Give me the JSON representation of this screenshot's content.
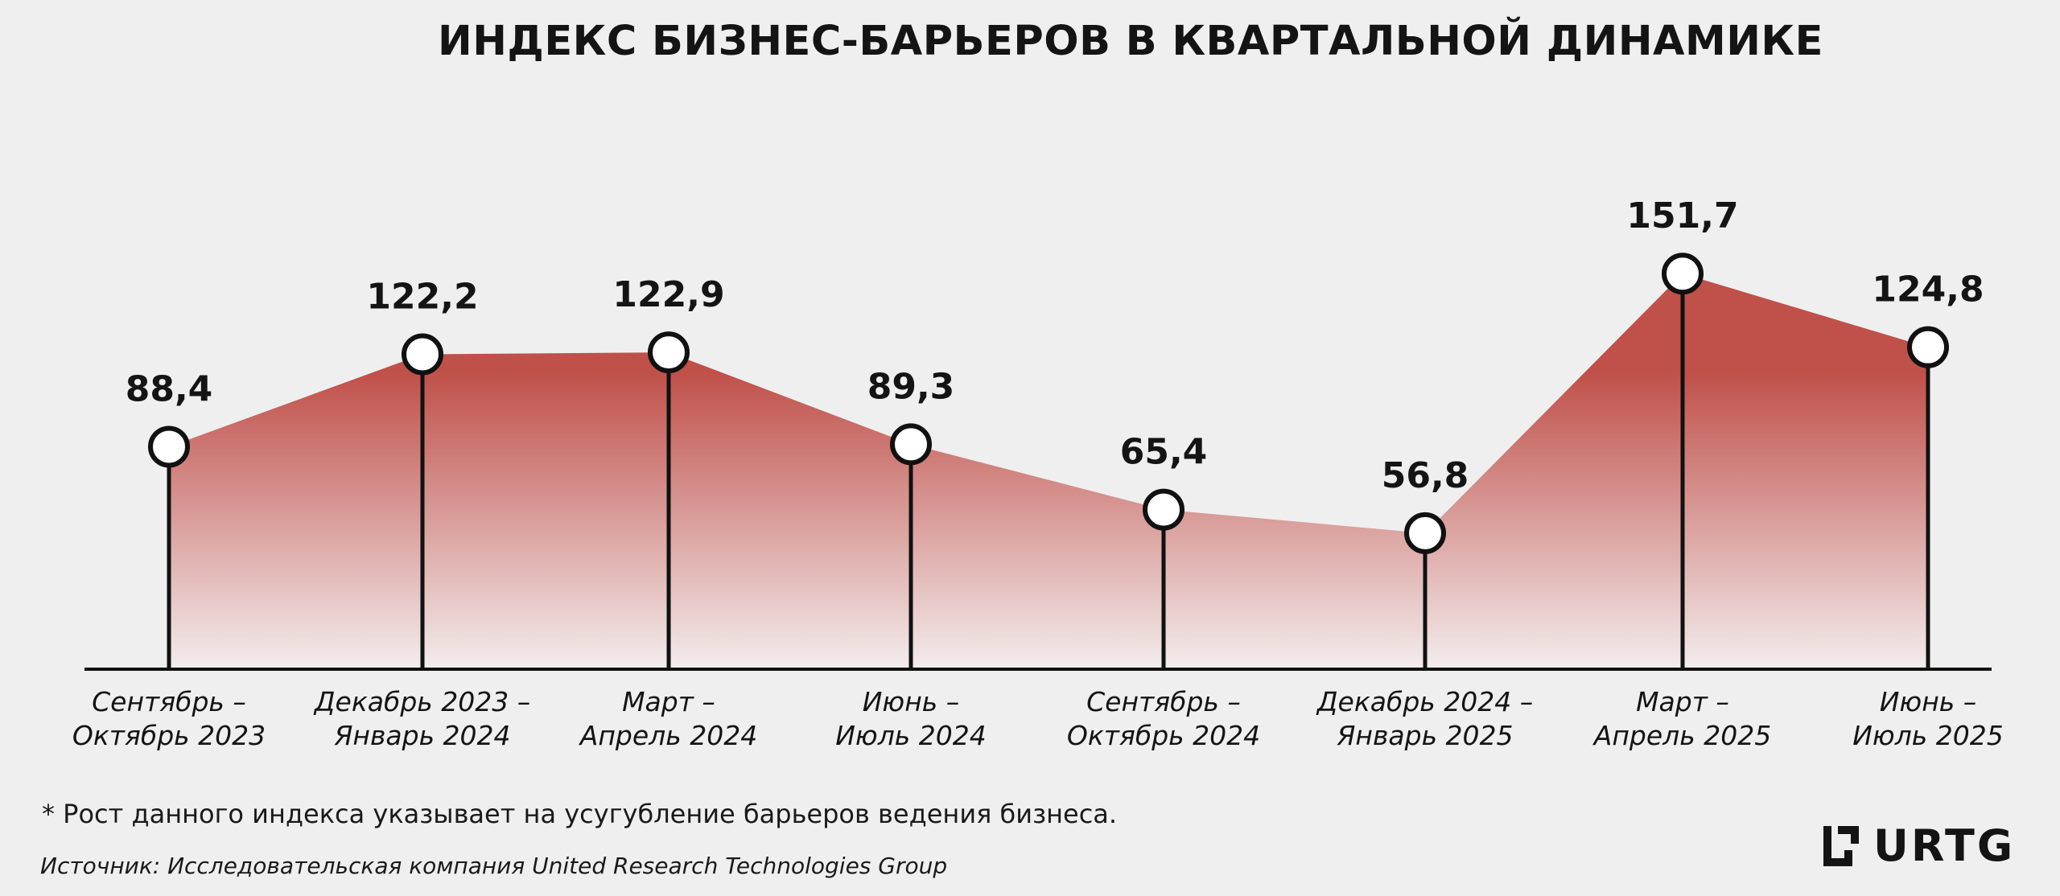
{
  "chart_data": {
    "type": "area",
    "title": "ИНДЕКС БИЗНЕС-БАРЬЕРОВ В КВАРТАЛЬНОЙ ДИНАМИКЕ",
    "categories": [
      [
        "Сентябрь –",
        "Октябрь 2023"
      ],
      [
        "Декабрь 2023 –",
        "Январь 2024"
      ],
      [
        "Март –",
        "Апрель 2024"
      ],
      [
        "Июнь –",
        "Июль 2024"
      ],
      [
        "Сентябрь –",
        "Октябрь 2024"
      ],
      [
        "Декабрь 2024 –",
        "Январь 2025"
      ],
      [
        "Март –",
        "Апрель 2025"
      ],
      [
        "Июнь –",
        "Июль 2025"
      ]
    ],
    "values": [
      88.4,
      122.2,
      122.9,
      89.3,
      65.4,
      56.8,
      151.7,
      124.8
    ],
    "value_labels": [
      "88,4",
      "122,2",
      "122,9",
      "89,3",
      "65,4",
      "56,8",
      "151,7",
      "124,8"
    ],
    "ylim": [
      0,
      151.7
    ],
    "grid": false,
    "legend": "none",
    "colors": {
      "fill_top": "#c0504a",
      "fill_bottom": "#f3eded",
      "line": "#111111",
      "marker_fill": "#ffffff"
    }
  },
  "footnote": "* Рост данного индекса указывает на усугубление барьеров ведения бизнеса.",
  "source": "Источник: Исследовательская компания United Research Technologies Group",
  "logo": {
    "text": "URTG",
    "icon": "urtg-logo-mark-icon"
  }
}
